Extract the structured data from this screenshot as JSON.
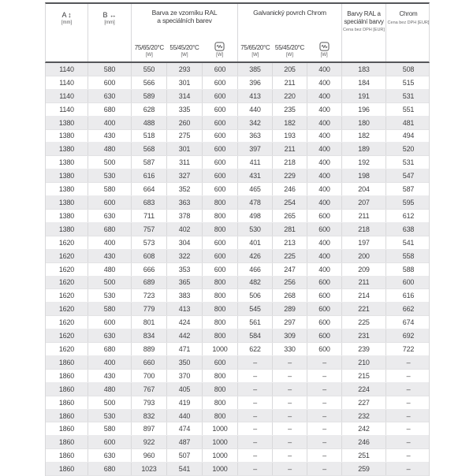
{
  "table": {
    "headers": {
      "a_label": "A ↕",
      "a_unit": "[mm]",
      "b_label": "B ↔",
      "b_unit": "[mm]",
      "group_ral_line1": "Barva ze vzorníku RAL",
      "group_ral_line2": "a speciálních barev",
      "group_chrom": "Galvanický povrch Chrom",
      "sub_temp_75": "75/65/20°C",
      "sub_temp_55": "55/45/20°C",
      "sub_unit_w": "[W]",
      "electric_icon": "heating-element-icon",
      "price_ral_line1": "Barvy RAL a",
      "price_ral_line2": "speciální barvy",
      "price_chrom_title": "Chrom",
      "price_subtitle": "Cena bez DPH [EUR]"
    },
    "rows": [
      [
        1140,
        580,
        550,
        293,
        600,
        385,
        205,
        400,
        183,
        508
      ],
      [
        1140,
        600,
        566,
        301,
        600,
        396,
        211,
        400,
        184,
        515
      ],
      [
        1140,
        630,
        589,
        314,
        600,
        413,
        220,
        400,
        191,
        531
      ],
      [
        1140,
        680,
        628,
        335,
        600,
        440,
        235,
        400,
        196,
        551
      ],
      [
        1380,
        400,
        488,
        260,
        600,
        342,
        182,
        400,
        180,
        481
      ],
      [
        1380,
        430,
        518,
        275,
        600,
        363,
        193,
        400,
        182,
        494
      ],
      [
        1380,
        480,
        568,
        301,
        600,
        397,
        211,
        400,
        189,
        520
      ],
      [
        1380,
        500,
        587,
        311,
        600,
        411,
        218,
        400,
        192,
        531
      ],
      [
        1380,
        530,
        616,
        327,
        600,
        431,
        229,
        400,
        198,
        547
      ],
      [
        1380,
        580,
        664,
        352,
        600,
        465,
        246,
        400,
        204,
        587
      ],
      [
        1380,
        600,
        683,
        363,
        800,
        478,
        254,
        400,
        207,
        595
      ],
      [
        1380,
        630,
        711,
        378,
        800,
        498,
        265,
        600,
        211,
        612
      ],
      [
        1380,
        680,
        757,
        402,
        800,
        530,
        281,
        600,
        218,
        638
      ],
      [
        1620,
        400,
        573,
        304,
        600,
        401,
        213,
        400,
        197,
        541
      ],
      [
        1620,
        430,
        608,
        322,
        600,
        426,
        225,
        400,
        200,
        558
      ],
      [
        1620,
        480,
        666,
        353,
        600,
        466,
        247,
        400,
        209,
        588
      ],
      [
        1620,
        500,
        689,
        365,
        800,
        482,
        256,
        600,
        211,
        600
      ],
      [
        1620,
        530,
        723,
        383,
        800,
        506,
        268,
        600,
        214,
        616
      ],
      [
        1620,
        580,
        779,
        413,
        800,
        545,
        289,
        600,
        221,
        662
      ],
      [
        1620,
        600,
        801,
        424,
        800,
        561,
        297,
        600,
        225,
        674
      ],
      [
        1620,
        630,
        834,
        442,
        800,
        584,
        309,
        600,
        231,
        692
      ],
      [
        1620,
        680,
        889,
        471,
        1000,
        622,
        330,
        600,
        239,
        722
      ],
      [
        1860,
        400,
        660,
        350,
        600,
        "–",
        "–",
        "–",
        210,
        "–"
      ],
      [
        1860,
        430,
        700,
        370,
        800,
        "–",
        "–",
        "–",
        215,
        "–"
      ],
      [
        1860,
        480,
        767,
        405,
        800,
        "–",
        "–",
        "–",
        224,
        "–"
      ],
      [
        1860,
        500,
        793,
        419,
        800,
        "–",
        "–",
        "–",
        227,
        "–"
      ],
      [
        1860,
        530,
        832,
        440,
        800,
        "–",
        "–",
        "–",
        232,
        "–"
      ],
      [
        1860,
        580,
        897,
        474,
        1000,
        "–",
        "–",
        "–",
        242,
        "–"
      ],
      [
        1860,
        600,
        922,
        487,
        1000,
        "–",
        "–",
        "–",
        246,
        "–"
      ],
      [
        1860,
        630,
        960,
        507,
        1000,
        "–",
        "–",
        "–",
        251,
        "–"
      ],
      [
        1860,
        680,
        1023,
        541,
        1000,
        "–",
        "–",
        "–",
        259,
        "–"
      ]
    ]
  },
  "colors": {
    "stripe": "#ebebed",
    "dark_rule": "#55565a",
    "grid_line": "#d8d8da",
    "text": "#3d3d3f"
  }
}
